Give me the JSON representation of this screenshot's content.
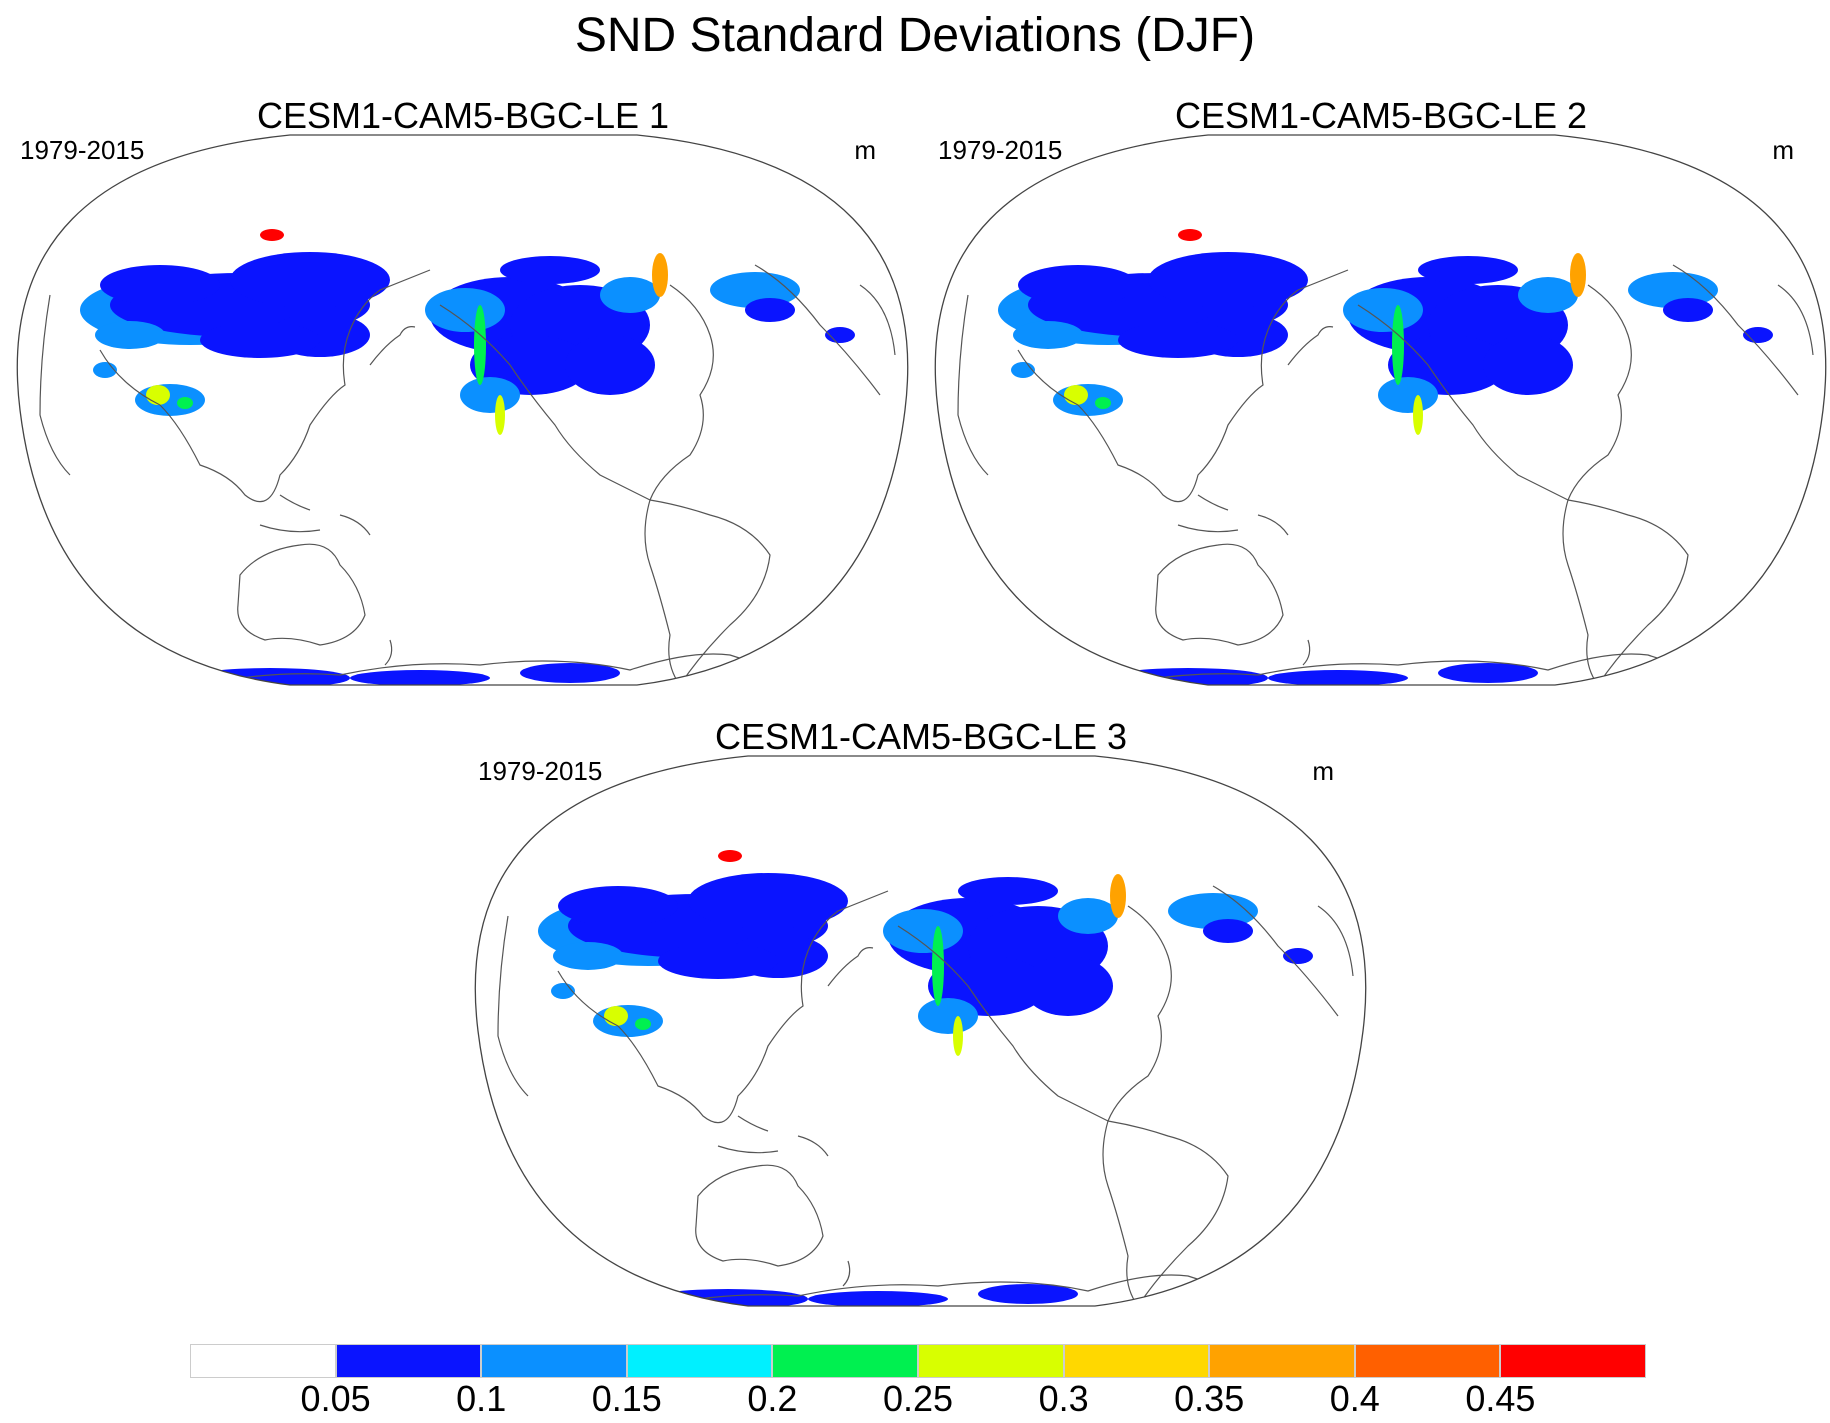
{
  "title": "SND Standard Deviations (DJF)",
  "panels": [
    {
      "title": "CESM1-CAM5-BGC-LE 1",
      "period": "1979-2015",
      "units": "m"
    },
    {
      "title": "CESM1-CAM5-BGC-LE 2",
      "period": "1979-2015",
      "units": "m"
    },
    {
      "title": "CESM1-CAM5-BGC-LE 3",
      "period": "1979-2015",
      "units": "m"
    }
  ],
  "colorbar": {
    "labels": [
      "0.05",
      "0.1",
      "0.15",
      "0.2",
      "0.25",
      "0.3",
      "0.35",
      "0.4",
      "0.45"
    ],
    "colors": [
      "#ffffff",
      "#0a14ff",
      "#0b90ff",
      "#00f0ff",
      "#00f050",
      "#d8ff00",
      "#ffd800",
      "#ffa200",
      "#ff6000",
      "#ff0000"
    ]
  }
}
